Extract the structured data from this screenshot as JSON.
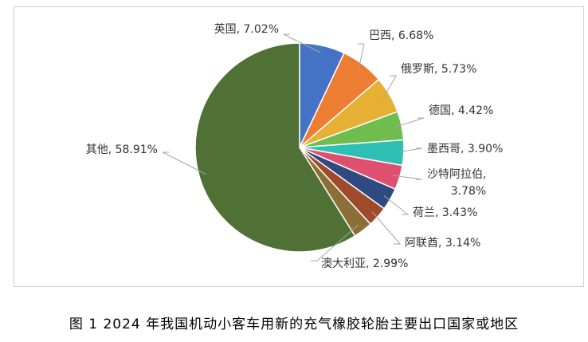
{
  "caption": "图 1  2024 年我国机动小客车用新的充气橡胶轮胎主要出口国家或地区",
  "chart_data": {
    "type": "pie",
    "title": "",
    "unit": "%",
    "start_angle_deg": 0,
    "direction": "clockwise",
    "slices": [
      {
        "name": "英国",
        "value": 7.02,
        "label": "英国, 7.02%",
        "color": "#4472c4"
      },
      {
        "name": "巴西",
        "value": 6.68,
        "label": "巴西, 6.68%",
        "color": "#ed7d31"
      },
      {
        "name": "俄罗斯",
        "value": 5.73,
        "label": "俄罗斯, 5.73%",
        "color": "#e6b035"
      },
      {
        "name": "德国",
        "value": 4.42,
        "label": "德国, 4.42%",
        "color": "#70bd4f"
      },
      {
        "name": "墨西哥",
        "value": 3.9,
        "label": "墨西哥, 3.90%",
        "color": "#2ec0b4"
      },
      {
        "name": "沙特阿拉伯",
        "value": 3.78,
        "label": "沙特阿拉伯,|3.78%",
        "color": "#e0506e"
      },
      {
        "name": "荷兰",
        "value": 3.43,
        "label": "荷兰, 3.43%",
        "color": "#2f4a80"
      },
      {
        "name": "阿联酋",
        "value": 3.14,
        "label": "阿联酋, 3.14%",
        "color": "#9e4a2b"
      },
      {
        "name": "澳大利亚",
        "value": 2.99,
        "label": "澳大利亚, 2.99%",
        "color": "#8c6e36"
      },
      {
        "name": "其他",
        "value": 58.91,
        "label": "其他, 58.91%",
        "color": "#4f7136"
      }
    ]
  }
}
